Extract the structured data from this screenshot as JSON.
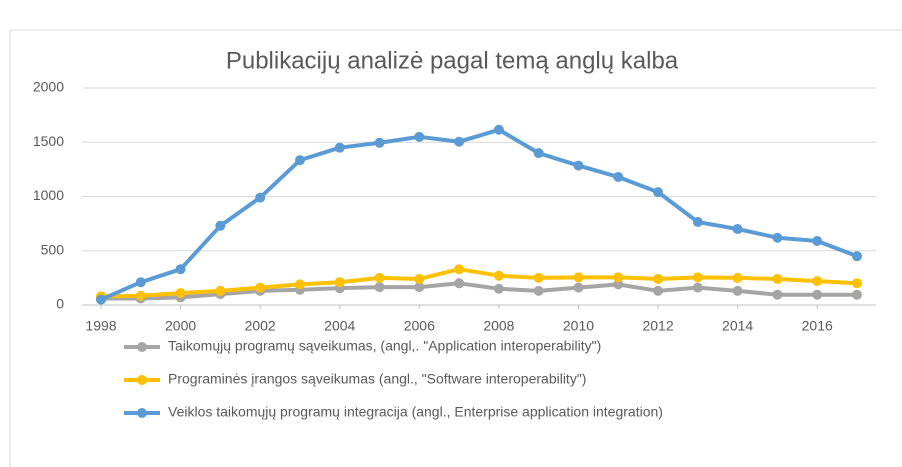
{
  "chart_data": {
    "type": "line",
    "title": "Publikacijų analizė pagal temą anglų kalba",
    "x": [
      1998,
      1999,
      2000,
      2001,
      2002,
      2003,
      2004,
      2005,
      2006,
      2007,
      2008,
      2009,
      2010,
      2011,
      2012,
      2013,
      2014,
      2015,
      2016,
      2017
    ],
    "series": [
      {
        "name": "Taikomųjų programų sąveikumas, (angl,. \"Application interoperability\")",
        "color": "#a5a5a5",
        "values": [
          60,
          60,
          70,
          100,
          130,
          140,
          155,
          165,
          165,
          200,
          150,
          130,
          160,
          190,
          130,
          160,
          130,
          95,
          95,
          95
        ]
      },
      {
        "name": "Programinės įrangos sąveikumas (angl., \"Software interoperability\")",
        "color": "#ffc000",
        "values": [
          80,
          85,
          110,
          130,
          160,
          190,
          210,
          250,
          240,
          330,
          270,
          250,
          255,
          255,
          240,
          255,
          250,
          240,
          220,
          200
        ]
      },
      {
        "name": "Veiklos taikomųjų programų integracija (angl., Enterprise application integration)",
        "color": "#5b9bd5",
        "values": [
          50,
          210,
          330,
          730,
          990,
          1335,
          1450,
          1495,
          1550,
          1505,
          1615,
          1400,
          1285,
          1180,
          1040,
          765,
          700,
          620,
          590,
          450
        ]
      }
    ],
    "xlim": [
      1998,
      2017
    ],
    "xticks": [
      1998,
      2000,
      2002,
      2004,
      2006,
      2008,
      2010,
      2012,
      2014,
      2016
    ],
    "ylim": [
      0,
      2000
    ],
    "yticks": [
      0,
      500,
      1000,
      1500,
      2000
    ],
    "grid": true,
    "legend": "bottom"
  }
}
